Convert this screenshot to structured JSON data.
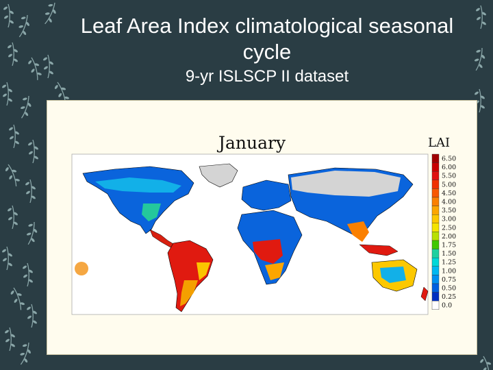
{
  "slide": {
    "title_line1": "Leaf Area Index climatological seasonal",
    "title_line2": "cycle",
    "subtitle": "9-yr ISLSCP II dataset"
  },
  "map": {
    "month_label": "January",
    "legend_title": "LAI",
    "legend": [
      {
        "label": "6.50",
        "color": "#a00000"
      },
      {
        "label": "6.00",
        "color": "#c80000"
      },
      {
        "label": "5.50",
        "color": "#e01010"
      },
      {
        "label": "5.00",
        "color": "#f03000"
      },
      {
        "label": "4.50",
        "color": "#f85800"
      },
      {
        "label": "4.00",
        "color": "#fb8000"
      },
      {
        "label": "3.50",
        "color": "#fca600"
      },
      {
        "label": "3.00",
        "color": "#fcc800"
      },
      {
        "label": "2.50",
        "color": "#f4e400"
      },
      {
        "label": "2.00",
        "color": "#b8e000"
      },
      {
        "label": "1.75",
        "color": "#40c800"
      },
      {
        "label": "1.50",
        "color": "#20d0a0"
      },
      {
        "label": "1.25",
        "color": "#00d8d8"
      },
      {
        "label": "1.00",
        "color": "#00b8f0"
      },
      {
        "label": "0.75",
        "color": "#0090f0"
      },
      {
        "label": "0.50",
        "color": "#0060e0"
      },
      {
        "label": "0.25",
        "color": "#0030c0"
      },
      {
        "label": "0.0",
        "color": "#ffffff"
      }
    ],
    "no_data_color": "#d4d4d4"
  }
}
